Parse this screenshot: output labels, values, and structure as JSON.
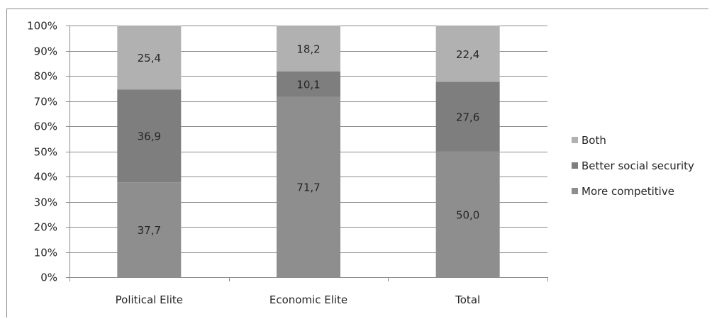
{
  "chart_data": {
    "type": "bar",
    "stacked": true,
    "categories": [
      "Political Elite",
      "Economic Elite",
      "Total"
    ],
    "series": [
      {
        "name": "More competitive",
        "values": [
          37.7,
          71.7,
          50.0
        ],
        "labels": [
          "37,7",
          "71,7",
          "50,0"
        ],
        "color": "#8e8e8e"
      },
      {
        "name": "Better social security",
        "values": [
          36.9,
          10.1,
          27.6
        ],
        "labels": [
          "36,9",
          "10,1",
          "27,6"
        ],
        "color": "#7e7e7e"
      },
      {
        "name": "Both",
        "values": [
          25.4,
          18.2,
          22.4
        ],
        "labels": [
          "25,4",
          "18,2",
          "22,4"
        ],
        "color": "#b1b1b1"
      }
    ],
    "yticks": [
      "0%",
      "10%",
      "20%",
      "30%",
      "40%",
      "50%",
      "60%",
      "70%",
      "80%",
      "90%",
      "100%"
    ],
    "ylim": [
      0,
      100
    ],
    "grid": true,
    "legend": {
      "position": "right",
      "order": [
        "Both",
        "Better social security",
        "More competitive"
      ]
    }
  }
}
